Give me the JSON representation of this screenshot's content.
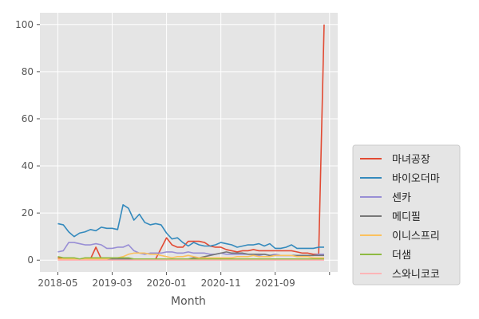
{
  "chart_data": {
    "type": "line",
    "title": "",
    "xlabel": "Month",
    "ylabel": "",
    "x": [
      "2018-05",
      "2018-06",
      "2018-07",
      "2018-08",
      "2018-09",
      "2018-10",
      "2018-11",
      "2018-12",
      "2019-01",
      "2019-02",
      "2019-03",
      "2019-04",
      "2019-05",
      "2019-06",
      "2019-07",
      "2019-08",
      "2019-09",
      "2019-10",
      "2019-11",
      "2019-12",
      "2020-01",
      "2020-02",
      "2020-03",
      "2020-04",
      "2020-05",
      "2020-06",
      "2020-07",
      "2020-08",
      "2020-09",
      "2020-10",
      "2020-11",
      "2020-12",
      "2021-01",
      "2021-02",
      "2021-03",
      "2021-04",
      "2021-05",
      "2021-06",
      "2021-07",
      "2021-08",
      "2021-09",
      "2021-10",
      "2021-11",
      "2021-12",
      "2022-01",
      "2022-02",
      "2022-03",
      "2022-04",
      "2022-05",
      "2022-06"
    ],
    "x_ticks": [
      "2018-05",
      "2019-03",
      "2020-01",
      "2020-11",
      "2021-09",
      ""
    ],
    "x_tick_index": [
      0,
      10,
      20,
      30,
      40,
      50
    ],
    "xlim_index": [
      -3.3,
      51.5
    ],
    "yticks": [
      0,
      20,
      40,
      60,
      80,
      100
    ],
    "ylim": [
      -5,
      105
    ],
    "grid": true,
    "legend_position": "lower-right-outside",
    "series": [
      {
        "name": "마녀공장",
        "color": "#E24A33",
        "values": [
          1,
          0.5,
          0.5,
          0.5,
          0.5,
          0.5,
          0.5,
          5.5,
          0.5,
          0.5,
          0.5,
          0.5,
          0.5,
          0.5,
          0.5,
          0.5,
          0.5,
          0.5,
          0.5,
          5,
          9.5,
          6.5,
          5.5,
          5.5,
          8,
          8,
          8,
          7.5,
          6,
          5.5,
          5.5,
          4.5,
          4,
          3.5,
          4,
          4,
          4.5,
          4,
          4,
          4,
          4,
          4,
          4,
          4,
          3.5,
          3,
          3,
          2.5,
          2.5,
          100
        ]
      },
      {
        "name": "바이오더마",
        "color": "#348ABD",
        "values": [
          15.5,
          15,
          12,
          10,
          11.5,
          12,
          13,
          12.5,
          14,
          13.5,
          13.5,
          13,
          23.5,
          22,
          17,
          19.5,
          16,
          15,
          15.5,
          15,
          11.5,
          9,
          9.5,
          7.5,
          6,
          7.5,
          6.5,
          6,
          6,
          6.5,
          7.5,
          7,
          6.5,
          5.5,
          6,
          6.5,
          6.5,
          7,
          6,
          7,
          5,
          5,
          5.5,
          6.5,
          5,
          5,
          5,
          5,
          5.5,
          5.5
        ]
      },
      {
        "name": "센카",
        "color": "#988ED5",
        "values": [
          3.5,
          4,
          7.5,
          7.5,
          7,
          6.5,
          6.5,
          7,
          6.5,
          5,
          5,
          5.5,
          5.5,
          6.5,
          4,
          3,
          2.5,
          3,
          3,
          3,
          3.5,
          3.5,
          3,
          3,
          3.5,
          3,
          3,
          3,
          2.5,
          2.5,
          3,
          2.5,
          2.5,
          2.5,
          2.5,
          2.5,
          2.5,
          2,
          2.5,
          2,
          2.5,
          2,
          2,
          2,
          2,
          2,
          2,
          2,
          2.5,
          2.5
        ]
      },
      {
        "name": "메디필",
        "color": "#777777",
        "values": [
          0.5,
          0.5,
          0.5,
          0.5,
          0.5,
          0.5,
          0.5,
          0.5,
          0.5,
          0.5,
          0.5,
          0.5,
          0.5,
          0.5,
          0.5,
          0.5,
          0.5,
          0.5,
          0.5,
          0.5,
          0.5,
          0.5,
          0.5,
          0.5,
          0.5,
          1,
          1,
          1.5,
          2,
          2.5,
          3,
          3.5,
          3,
          3,
          3,
          2.5,
          2.5,
          2.5,
          2.5,
          2,
          2,
          2,
          2,
          2,
          2,
          2,
          2,
          2,
          2,
          2
        ]
      },
      {
        "name": "이니스프리",
        "color": "#FBC15E",
        "values": [
          0.5,
          0.5,
          0.5,
          0.5,
          0.5,
          0.5,
          0.5,
          0.5,
          0.5,
          0.5,
          1,
          1,
          1.5,
          2.5,
          3,
          3,
          3,
          2.5,
          2.5,
          2,
          1.5,
          1,
          1.5,
          1.5,
          2,
          1.5,
          1,
          1,
          1,
          1,
          1,
          1,
          1,
          1.5,
          1.5,
          1.5,
          2,
          1.5,
          1.5,
          1.5,
          2,
          2,
          2,
          2,
          1.5,
          1.5,
          1.5,
          1,
          1,
          1
        ]
      },
      {
        "name": "더샘",
        "color": "#8EBA42",
        "values": [
          1.5,
          1,
          1,
          1,
          0.5,
          1,
          1,
          1,
          1,
          1,
          1,
          1,
          1,
          1,
          0.5,
          0.5,
          0.5,
          0.5,
          0.5,
          0.5,
          0.5,
          0.5,
          0.5,
          0.5,
          0.5,
          0.5,
          0.5,
          0.5,
          0.5,
          0.5,
          0.5,
          0.5,
          0.5,
          0.5,
          0.5,
          0.5,
          0.5,
          0.5,
          0.5,
          0.5,
          0.5,
          0.5,
          0.5,
          0.5,
          0.5,
          0.5,
          0.5,
          0.5,
          0.5,
          0.5
        ]
      },
      {
        "name": "스와니코코",
        "color": "#FFB5B8",
        "values": [
          0,
          0,
          0,
          0,
          0,
          0,
          0,
          0,
          0,
          0,
          0,
          0,
          0,
          0,
          0,
          0,
          0,
          0,
          0,
          0,
          0,
          0,
          0,
          0,
          0,
          0,
          0,
          0,
          0,
          0,
          0,
          0,
          0,
          0,
          0,
          0,
          0,
          0,
          0,
          0,
          0,
          0,
          0,
          0,
          0,
          0,
          0,
          0,
          0,
          0
        ]
      }
    ]
  }
}
